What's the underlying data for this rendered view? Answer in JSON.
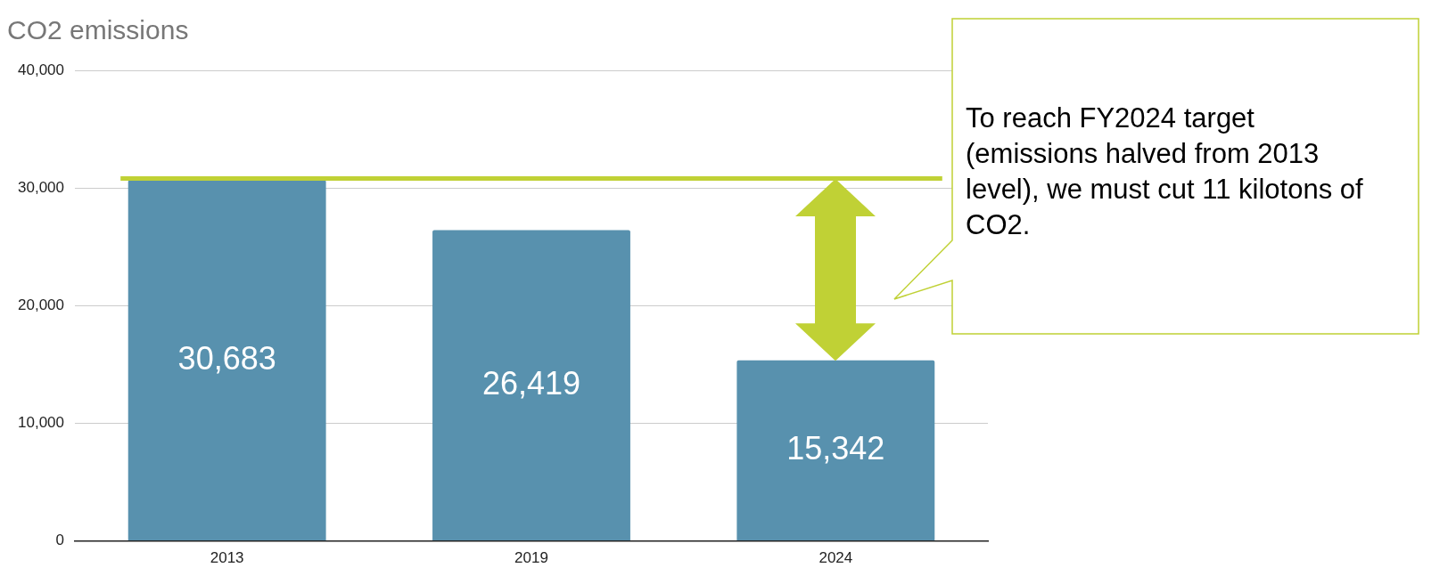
{
  "chart_data": {
    "type": "bar",
    "title": "CO2 emissions",
    "categories": [
      "2013",
      "2019",
      "2024"
    ],
    "values": [
      30683,
      26419,
      15342
    ],
    "color": "#5891ae",
    "value_labels": [
      "30,683",
      "26,419",
      "15,342"
    ],
    "ylim": [
      0,
      40000
    ],
    "yticks": [
      {
        "value": 0,
        "label": "0"
      },
      {
        "value": 10000,
        "label": "10,000"
      },
      {
        "value": 20000,
        "label": "20,000"
      },
      {
        "value": 30000,
        "label": "30,000"
      },
      {
        "value": 40000,
        "label": "40,000"
      }
    ],
    "grid": "y",
    "legend": false,
    "ref_lines": [
      {
        "axis": "y",
        "value": 30800,
        "color": "#c0d135"
      }
    ],
    "annotations": [
      "To reach FY2024 target (emissions halved from 2013 level), we must cut 11 kilotons of CO2."
    ]
  }
}
